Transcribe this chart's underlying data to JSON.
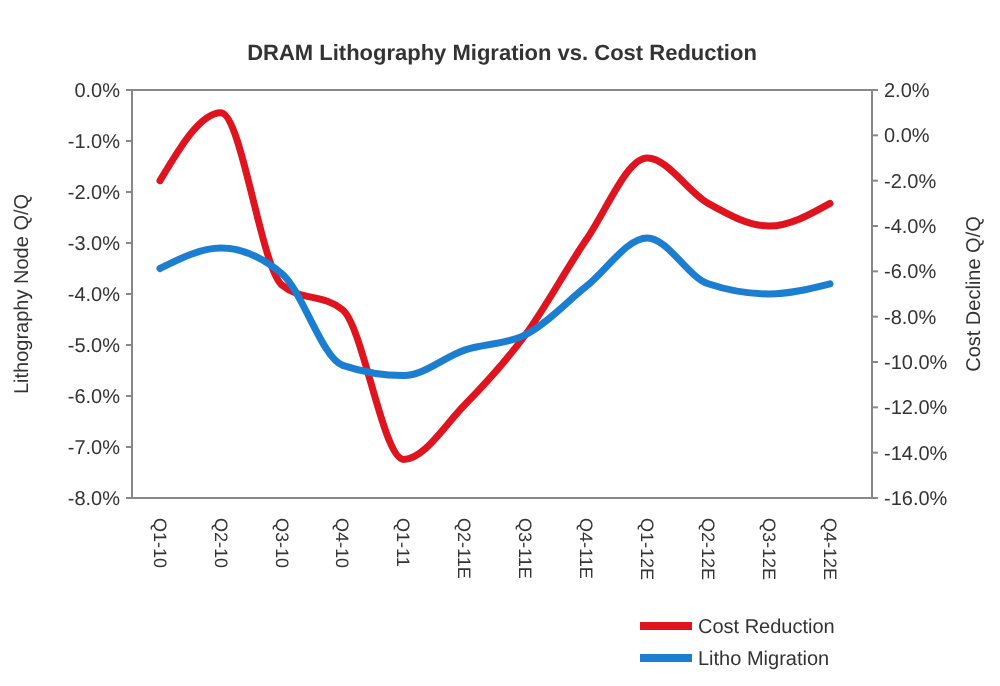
{
  "chart_data": {
    "type": "line",
    "title": "DRAM Lithography  Migration vs. Cost Reduction",
    "ylabel": "Lithography Node Q/Q",
    "y2label": "Cost Decline Q/Q",
    "categories": [
      "Q1-10",
      "Q2-10",
      "Q3-10",
      "Q4-10",
      "Q1-11",
      "Q2-11E",
      "Q3-11E",
      "Q4-11E",
      "Q1-12E",
      "Q2-12E",
      "Q3-12E",
      "Q4-12E"
    ],
    "series": [
      {
        "name": "Cost Reduction",
        "color": "#e0141e",
        "axis": "y2",
        "values": [
          -2.0,
          1.0,
          -6.6,
          -7.7,
          -14.3,
          -11.9,
          -8.8,
          -4.6,
          -1.0,
          -3.0,
          -4.0,
          -3.0
        ]
      },
      {
        "name": "Litho Migration",
        "color": "#1c7ed0",
        "values": [
          -3.5,
          -3.1,
          -3.6,
          -5.4,
          -5.6,
          -5.1,
          -4.8,
          -3.85,
          -2.9,
          -3.8,
          -4.0,
          -3.8
        ]
      }
    ],
    "ylim": [
      -8,
      0
    ],
    "yticks": [
      {
        "value": 0,
        "label": "0.0%"
      },
      {
        "value": -1,
        "label": "-1.0%"
      },
      {
        "value": -2,
        "label": "-2.0%"
      },
      {
        "value": -3,
        "label": "-3.0%"
      },
      {
        "value": -4,
        "label": "-4.0%"
      },
      {
        "value": -5,
        "label": "-5.0%"
      },
      {
        "value": -6,
        "label": "-6.0%"
      },
      {
        "value": -7,
        "label": "-7.0%"
      },
      {
        "value": -8,
        "label": "-8.0%"
      }
    ],
    "y2lim": [
      -16,
      2
    ],
    "y2ticks": [
      {
        "value": 2,
        "label": "2.0%"
      },
      {
        "value": 0,
        "label": "0.0%"
      },
      {
        "value": -2,
        "label": "-2.0%"
      },
      {
        "value": -4,
        "label": "-4.0%"
      },
      {
        "value": -6,
        "label": "-6.0%"
      },
      {
        "value": -8,
        "label": "-8.0%"
      },
      {
        "value": -10,
        "label": "-10.0%"
      },
      {
        "value": -12,
        "label": "-12.0%"
      },
      {
        "value": -14,
        "label": "-14.0%"
      },
      {
        "value": -16,
        "label": "-16.0%"
      }
    ],
    "legend": "bottom right",
    "marker": "none",
    "line_style": "solid",
    "grid": false
  }
}
